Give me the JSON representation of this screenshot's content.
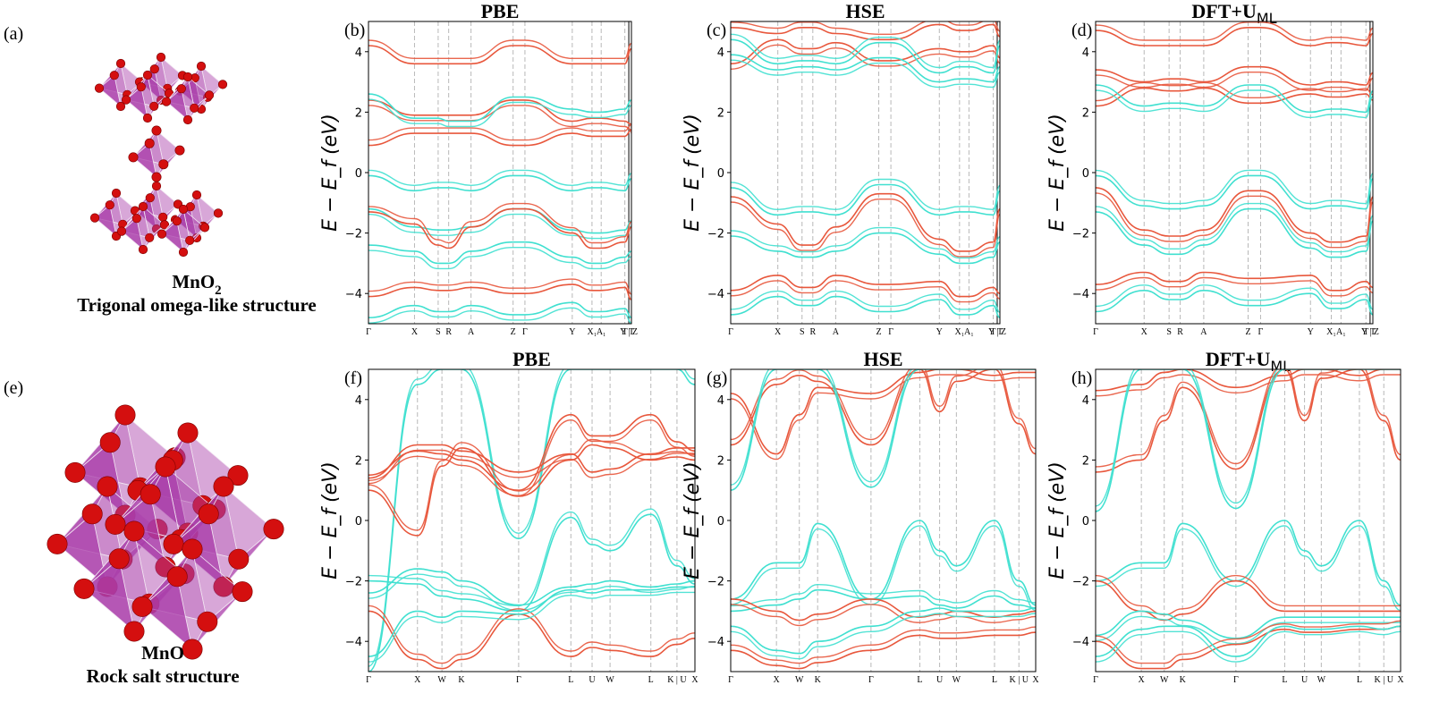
{
  "colors": {
    "spin_up": "#e8573c",
    "spin_down": "#40e0d0",
    "octahedron": "#a93ca9",
    "atom": "#d40f0f"
  },
  "left": {
    "a": {
      "label": "(a)",
      "formula": "MnO",
      "subscript": "2",
      "subtitle": "Trigonal omega-like structure"
    },
    "e": {
      "label": "(e)",
      "formula": "MnO",
      "subtitle": "Rock salt structure"
    }
  },
  "panels": [
    {
      "label": "(b)",
      "title": "PBE",
      "sub": ""
    },
    {
      "label": "(c)",
      "title": "HSE",
      "sub": ""
    },
    {
      "label": "(d)",
      "title": "DFT+U",
      "sub": "ML"
    },
    {
      "label": "(f)",
      "title": "PBE",
      "sub": ""
    },
    {
      "label": "(g)",
      "title": "HSE",
      "sub": ""
    },
    {
      "label": "(h)",
      "title": "DFT+U",
      "sub": "ML"
    }
  ],
  "chart_data": [
    {
      "type": "line",
      "panel": "(b)",
      "ylabel": "E − E_f (eV)",
      "ylim": [
        -5,
        5
      ],
      "yticks": [
        4,
        2,
        0,
        -2,
        -4
      ],
      "kpath": [
        "Γ",
        "X",
        "S",
        "R",
        "A",
        "Z",
        "Γ",
        "Y",
        "X₁",
        "A₁",
        "T",
        "Y | Z",
        "T"
      ],
      "series": [
        {
          "spin": "up",
          "values": [
            4.2,
            3.6,
            3.6,
            3.6,
            3.6,
            4.2,
            4.2,
            3.6,
            3.6,
            3.6,
            3.6,
            4.1,
            4.1
          ]
        },
        {
          "spin": "up",
          "values": [
            2.4,
            1.9,
            1.9,
            1.9,
            1.9,
            2.4,
            2.4,
            1.7,
            1.8,
            1.8,
            1.7,
            1.6,
            1.6
          ]
        },
        {
          "spin": "up",
          "values": [
            0.9,
            1.3,
            1.3,
            1.3,
            1.3,
            0.9,
            0.9,
            1.3,
            1.2,
            1.2,
            1.2,
            1.4,
            1.3
          ]
        },
        {
          "spin": "down",
          "values": [
            2.6,
            1.8,
            1.8,
            1.7,
            1.7,
            2.5,
            2.5,
            2.1,
            2.0,
            2.0,
            2.1,
            2.4,
            2.4
          ]
        },
        {
          "spin": "down",
          "values": [
            -0.1,
            -0.6,
            -0.5,
            -0.5,
            -0.6,
            -0.1,
            -0.1,
            -0.6,
            -0.5,
            -0.5,
            -0.6,
            -0.2,
            -0.2
          ]
        },
        {
          "spin": "down",
          "values": [
            -1.2,
            -1.8,
            -1.9,
            -1.9,
            -1.8,
            -1.2,
            -1.2,
            -1.9,
            -2.0,
            -2.0,
            -1.9,
            -1.6,
            -1.6
          ]
        },
        {
          "spin": "up",
          "values": [
            -1.3,
            -1.7,
            -2.4,
            -2.5,
            -1.8,
            -1.2,
            -1.2,
            -2.0,
            -2.5,
            -2.5,
            -2.3,
            -1.8,
            -1.8
          ]
        },
        {
          "spin": "down",
          "values": [
            -2.4,
            -2.6,
            -3.0,
            -3.0,
            -2.6,
            -2.3,
            -2.3,
            -2.8,
            -3.0,
            -3.0,
            -2.8,
            -2.6,
            -2.6
          ]
        },
        {
          "spin": "up",
          "values": [
            -4.1,
            -3.8,
            -3.9,
            -3.9,
            -3.8,
            -4.0,
            -4.0,
            -3.7,
            -3.9,
            -3.9,
            -3.8,
            -4.2,
            -4.2
          ]
        },
        {
          "spin": "down",
          "values": [
            -4.8,
            -4.4,
            -4.6,
            -4.6,
            -4.4,
            -4.7,
            -4.7,
            -4.3,
            -4.6,
            -4.6,
            -4.5,
            -4.8,
            -4.8
          ]
        }
      ]
    },
    {
      "type": "line",
      "panel": "(c)",
      "ylabel": "E − E_f (eV)",
      "ylim": [
        -5,
        5
      ],
      "yticks": [
        4,
        2,
        0,
        -2,
        -4
      ],
      "kpath": [
        "Γ",
        "X",
        "S",
        "R",
        "A",
        "Z",
        "Γ",
        "Y",
        "X₁",
        "A₁",
        "T",
        "Y | Z",
        "T"
      ],
      "series": [
        {
          "spin": "up",
          "values": [
            4.8,
            4.6,
            4.8,
            4.8,
            4.6,
            4.4,
            4.4,
            4.9,
            4.7,
            4.7,
            4.9,
            4.5,
            4.5
          ]
        },
        {
          "spin": "up",
          "values": [
            3.6,
            4.4,
            4.1,
            4.1,
            4.3,
            3.7,
            3.7,
            4.1,
            4.0,
            4.0,
            4.2,
            3.8,
            3.8
          ]
        },
        {
          "spin": "down",
          "values": [
            4.4,
            3.6,
            3.7,
            3.7,
            3.6,
            4.3,
            4.3,
            3.3,
            3.5,
            3.5,
            3.3,
            4.2,
            4.2
          ]
        },
        {
          "spin": "down",
          "values": [
            3.9,
            3.4,
            3.5,
            3.5,
            3.4,
            3.8,
            3.8,
            3.0,
            3.1,
            3.1,
            3.0,
            3.5,
            3.5
          ]
        },
        {
          "spin": "down",
          "values": [
            -0.5,
            -1.4,
            -1.3,
            -1.3,
            -1.4,
            -0.4,
            -0.4,
            -1.4,
            -1.3,
            -1.3,
            -1.4,
            -0.6,
            -0.6
          ]
        },
        {
          "spin": "up",
          "values": [
            -0.8,
            -1.7,
            -2.4,
            -2.4,
            -1.8,
            -0.7,
            -0.7,
            -2.2,
            -2.6,
            -2.6,
            -2.3,
            -1.2,
            -1.2
          ]
        },
        {
          "spin": "down",
          "values": [
            -2.1,
            -2.6,
            -2.8,
            -2.8,
            -2.6,
            -2.0,
            -2.0,
            -2.7,
            -3.0,
            -3.0,
            -2.8,
            -2.3,
            -2.3
          ]
        },
        {
          "spin": "up",
          "values": [
            -3.9,
            -3.4,
            -3.8,
            -3.8,
            -3.4,
            -3.7,
            -3.7,
            -3.6,
            -4.1,
            -4.1,
            -3.8,
            -4.0,
            -4.0
          ]
        },
        {
          "spin": "down",
          "values": [
            -4.7,
            -4.1,
            -4.4,
            -4.4,
            -4.1,
            -4.6,
            -4.6,
            -4.2,
            -4.7,
            -4.7,
            -4.4,
            -4.8,
            -4.8
          ]
        }
      ]
    },
    {
      "type": "line",
      "panel": "(d)",
      "ylabel": "E − E_f (eV)",
      "ylim": [
        -5,
        5
      ],
      "yticks": [
        4,
        2,
        0,
        -2,
        -4
      ],
      "kpath": [
        "Γ",
        "X",
        "S",
        "R",
        "A",
        "Z",
        "Γ",
        "Y",
        "X₁",
        "A₁",
        "T",
        "Y | Z",
        "T"
      ],
      "series": [
        {
          "spin": "up",
          "values": [
            4.7,
            4.2,
            4.2,
            4.2,
            4.2,
            4.8,
            4.8,
            4.2,
            4.3,
            4.3,
            4.2,
            4.6,
            4.6
          ]
        },
        {
          "spin": "up",
          "values": [
            3.4,
            3.0,
            3.1,
            3.1,
            3.0,
            3.5,
            3.5,
            2.9,
            3.0,
            3.0,
            2.9,
            3.3,
            3.3
          ]
        },
        {
          "spin": "up",
          "values": [
            2.2,
            2.8,
            2.7,
            2.7,
            2.8,
            2.3,
            2.3,
            2.6,
            2.5,
            2.5,
            2.6,
            2.4,
            2.4
          ]
        },
        {
          "spin": "down",
          "values": [
            2.9,
            2.2,
            2.3,
            2.3,
            2.2,
            2.9,
            2.9,
            2.0,
            2.1,
            2.1,
            2.0,
            2.7,
            2.7
          ]
        },
        {
          "spin": "down",
          "values": [
            -0.1,
            -1.1,
            -1.2,
            -1.2,
            -1.1,
            -0.1,
            -0.1,
            -1.2,
            -1.1,
            -1.1,
            -1.2,
            -0.2,
            -0.2
          ]
        },
        {
          "spin": "up",
          "values": [
            -0.5,
            -1.9,
            -2.1,
            -2.1,
            -1.9,
            -0.6,
            -0.6,
            -2.0,
            -2.3,
            -2.3,
            -2.1,
            -0.8,
            -0.8
          ]
        },
        {
          "spin": "down",
          "values": [
            -1.3,
            -2.4,
            -2.7,
            -2.7,
            -2.4,
            -1.2,
            -1.2,
            -2.5,
            -2.8,
            -2.8,
            -2.6,
            -1.6,
            -1.6
          ]
        },
        {
          "spin": "up",
          "values": [
            -3.7,
            -3.3,
            -3.6,
            -3.6,
            -3.3,
            -3.5,
            -3.5,
            -3.4,
            -3.9,
            -3.9,
            -3.6,
            -3.8,
            -3.8
          ]
        },
        {
          "spin": "down",
          "values": [
            -4.6,
            -3.9,
            -4.2,
            -4.2,
            -3.9,
            -4.4,
            -4.4,
            -4.0,
            -4.5,
            -4.5,
            -4.2,
            -4.7,
            -4.7
          ]
        }
      ]
    },
    {
      "type": "line",
      "panel": "(f)",
      "ylabel": "E − E_f (eV)",
      "ylim": [
        -5,
        5
      ],
      "yticks": [
        4,
        2,
        0,
        -2,
        -4
      ],
      "kpath": [
        "Γ",
        "X",
        "W",
        "K",
        "Γ",
        "L",
        "U",
        "W",
        "L",
        "K | U",
        "X"
      ],
      "series": [
        {
          "spin": "down",
          "values": [
            -5.0,
            4.5,
            5.0,
            5.0,
            -0.6,
            5.0,
            5.0,
            5.0,
            5.0,
            5.0,
            4.5
          ]
        },
        {
          "spin": "up",
          "values": [
            1.5,
            2.3,
            2.2,
            2.0,
            1.0,
            3.5,
            2.8,
            2.8,
            3.5,
            2.6,
            2.3
          ]
        },
        {
          "spin": "up",
          "values": [
            1.0,
            -0.5,
            1.8,
            2.4,
            0.8,
            2.0,
            2.5,
            2.4,
            2.0,
            2.1,
            2.0
          ]
        },
        {
          "spin": "up",
          "values": [
            1.4,
            2.5,
            2.5,
            2.3,
            1.6,
            2.2,
            1.6,
            1.7,
            2.2,
            2.4,
            2.4
          ]
        },
        {
          "spin": "down",
          "values": [
            -2.0,
            -2.1,
            -2.5,
            -2.6,
            -3.0,
            0.1,
            -0.8,
            -1.0,
            0.2,
            -1.5,
            -2.1
          ]
        },
        {
          "spin": "down",
          "values": [
            -2.4,
            -1.6,
            -1.7,
            -2.0,
            -2.8,
            -2.2,
            -2.1,
            -2.0,
            -2.2,
            -2.1,
            -2.0
          ]
        },
        {
          "spin": "up",
          "values": [
            -3.0,
            -4.6,
            -4.9,
            -4.6,
            -3.1,
            -4.5,
            -4.2,
            -4.3,
            -4.5,
            -4.1,
            -3.9
          ]
        },
        {
          "spin": "down",
          "values": [
            -4.5,
            -3.0,
            -3.2,
            -3.0,
            -3.1,
            -2.3,
            -2.4,
            -2.3,
            -2.3,
            -2.2,
            -2.2
          ]
        }
      ]
    },
    {
      "type": "line",
      "panel": "(g)",
      "ylabel": "E − E_f (eV)",
      "ylim": [
        -5,
        5
      ],
      "yticks": [
        4,
        2,
        0,
        -2,
        -4
      ],
      "kpath": [
        "Γ",
        "X",
        "W",
        "K",
        "Γ",
        "L",
        "U",
        "W",
        "L",
        "K | U",
        "X"
      ],
      "series": [
        {
          "spin": "up",
          "values": [
            2.5,
            4.5,
            4.8,
            4.6,
            2.5,
            5.0,
            3.6,
            4.6,
            5.0,
            3.2,
            2.2
          ]
        },
        {
          "spin": "up",
          "values": [
            4.2,
            2.2,
            3.5,
            4.4,
            4.2,
            4.9,
            5.0,
            5.0,
            4.8,
            4.9,
            4.9
          ]
        },
        {
          "spin": "down",
          "values": [
            1.0,
            5.0,
            5.0,
            5.0,
            1.1,
            5.0,
            5.0,
            5.0,
            5.0,
            5.0,
            5.0
          ]
        },
        {
          "spin": "down",
          "values": [
            -2.6,
            -1.4,
            -1.4,
            -0.1,
            -2.6,
            0.0,
            -1.0,
            -1.5,
            0.0,
            -2.0,
            -2.8
          ]
        },
        {
          "spin": "down",
          "values": [
            -3.0,
            -2.8,
            -2.6,
            -2.3,
            -2.6,
            -2.5,
            -2.8,
            -2.9,
            -2.5,
            -2.8,
            -2.9
          ]
        },
        {
          "spin": "up",
          "values": [
            -2.6,
            -3.0,
            -3.3,
            -3.1,
            -2.6,
            -3.2,
            -3.1,
            -3.0,
            -3.2,
            -3.1,
            -3.0
          ]
        },
        {
          "spin": "up",
          "values": [
            -4.3,
            -4.8,
            -4.9,
            -4.7,
            -4.3,
            -3.8,
            -3.9,
            -3.9,
            -3.8,
            -3.8,
            -3.7
          ]
        },
        {
          "spin": "down",
          "values": [
            -3.5,
            -4.3,
            -4.4,
            -4.0,
            -3.5,
            -3.0,
            -2.9,
            -3.0,
            -3.0,
            -3.0,
            -2.9
          ]
        }
      ]
    },
    {
      "type": "line",
      "panel": "(h)",
      "ylabel": "E − E_f (eV)",
      "ylim": [
        -5,
        5
      ],
      "yticks": [
        4,
        2,
        0,
        -2,
        -4
      ],
      "kpath": [
        "Γ",
        "X",
        "W",
        "K",
        "Γ",
        "L",
        "U",
        "W",
        "L",
        "K | U",
        "X"
      ],
      "series": [
        {
          "spin": "up",
          "values": [
            1.6,
            2.0,
            3.3,
            4.4,
            1.7,
            5.0,
            3.3,
            4.7,
            5.0,
            3.3,
            2.0
          ]
        },
        {
          "spin": "up",
          "values": [
            4.3,
            4.5,
            4.9,
            5.0,
            4.4,
            4.8,
            5.0,
            5.0,
            4.8,
            5.0,
            5.0
          ]
        },
        {
          "spin": "down",
          "values": [
            0.3,
            5.0,
            5.0,
            5.0,
            0.4,
            5.0,
            5.0,
            5.0,
            5.0,
            5.0,
            5.0
          ]
        },
        {
          "spin": "down",
          "values": [
            -2.0,
            -1.4,
            -1.4,
            -0.1,
            -2.0,
            0.0,
            -1.0,
            -1.5,
            0.0,
            -2.0,
            -2.8
          ]
        },
        {
          "spin": "up",
          "values": [
            -2.0,
            -3.0,
            -3.3,
            -3.1,
            -2.0,
            -3.0,
            -3.0,
            -3.0,
            -3.0,
            -3.0,
            -3.0
          ]
        },
        {
          "spin": "down",
          "values": [
            -3.8,
            -3.0,
            -3.1,
            -3.3,
            -3.9,
            -3.2,
            -3.2,
            -3.2,
            -3.2,
            -3.2,
            -3.2
          ]
        },
        {
          "spin": "up",
          "values": [
            -4.0,
            -4.9,
            -4.9,
            -4.6,
            -4.1,
            -3.6,
            -3.7,
            -3.7,
            -3.6,
            -3.6,
            -3.5
          ]
        },
        {
          "spin": "down",
          "values": [
            -4.5,
            -3.6,
            -3.5,
            -3.5,
            -4.5,
            -3.5,
            -3.6,
            -3.6,
            -3.5,
            -3.6,
            -3.5
          ]
        }
      ]
    }
  ]
}
